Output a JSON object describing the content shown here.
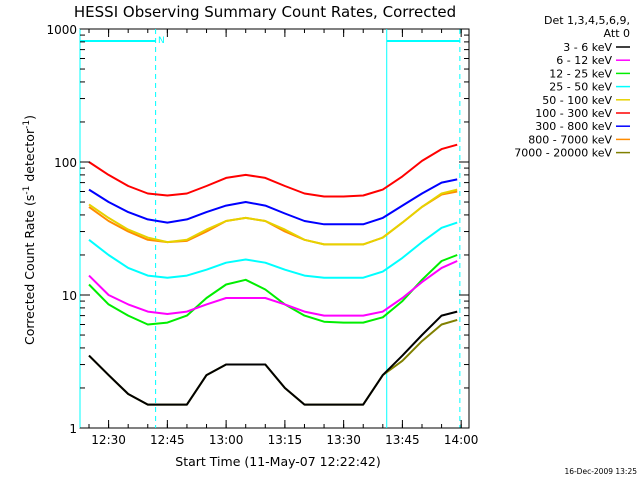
{
  "chart_data": {
    "type": "line",
    "title": "HESSI Observing Summary Count Rates, Corrected",
    "xlabel": "Start Time (11-May-07 12:22:42)",
    "ylabel_main": "Corrected Count Rate (s",
    "ylabel_sup1": "-1",
    "ylabel_mid": " detector",
    "ylabel_sup2": "-1",
    "ylabel_end": ")",
    "yscale": "log",
    "ylim": [
      1,
      1000
    ],
    "xlim": [
      "12:22:42",
      "14:02:00"
    ],
    "x_tick_labels": [
      "12:30",
      "12:45",
      "13:00",
      "13:15",
      "13:30",
      "13:45",
      "14:00"
    ],
    "y_tick_labels": [
      "1",
      "10",
      "100",
      "1000"
    ],
    "legend_header": [
      "Det 1,3,4,5,6,9,",
      "Att 0"
    ],
    "legend_position": "outside-right",
    "attenuator_bar_label": "N",
    "night_intervals": [
      [
        "12:22:42",
        "12:42:00"
      ],
      [
        "13:41:00",
        "13:59:40"
      ]
    ],
    "timestamp": "16-Dec-2009 13:25",
    "x": [
      "12:25",
      "12:30",
      "12:35",
      "12:40",
      "12:45",
      "12:50",
      "12:55",
      "13:00",
      "13:05",
      "13:10",
      "13:15",
      "13:20",
      "13:25",
      "13:30",
      "13:35",
      "13:40",
      "13:45",
      "13:50",
      "13:55",
      "13:59"
    ],
    "series": [
      {
        "name": "3 - 6 keV",
        "color": "#000000",
        "values": [
          3.5,
          2.5,
          1.8,
          1.5,
          1.5,
          1.5,
          2.5,
          3.0,
          3.0,
          3.0,
          2.0,
          1.5,
          1.5,
          1.5,
          1.5,
          2.5,
          3.5,
          5.0,
          7.0,
          7.5
        ]
      },
      {
        "name": "6 - 12 keV",
        "color": "#ff00ff",
        "values": [
          14,
          10,
          8.5,
          7.5,
          7.2,
          7.5,
          8.5,
          9.5,
          9.5,
          9.5,
          8.5,
          7.5,
          7.0,
          7.0,
          7.0,
          7.5,
          9.5,
          12.5,
          16,
          18
        ]
      },
      {
        "name": "12 - 25 keV",
        "color": "#00ee00",
        "values": [
          12,
          8.5,
          7.0,
          6.0,
          6.2,
          7.0,
          9.5,
          12,
          13,
          11,
          8.5,
          7.0,
          6.3,
          6.2,
          6.2,
          6.8,
          9.0,
          13,
          18,
          20
        ]
      },
      {
        "name": "25 - 50 keV",
        "color": "#00ffff",
        "values": [
          26,
          20,
          16,
          14,
          13.5,
          14,
          15.5,
          17.5,
          18.5,
          17.5,
          15.5,
          14,
          13.5,
          13.5,
          13.5,
          15,
          19,
          25,
          32,
          35
        ]
      },
      {
        "name": "50 - 100 keV",
        "color": "#e6d200",
        "values": [
          48,
          38,
          31,
          27,
          25,
          26,
          31,
          36,
          38,
          36,
          31,
          26,
          24,
          24,
          24,
          27,
          35,
          46,
          58,
          62
        ]
      },
      {
        "name": "100 - 300 keV",
        "color": "#ff0000",
        "values": [
          100,
          80,
          66,
          58,
          56,
          58,
          66,
          76,
          80,
          76,
          66,
          58,
          55,
          55,
          56,
          62,
          78,
          102,
          125,
          135
        ]
      },
      {
        "name": "300 - 800 keV",
        "color": "#0000ff",
        "values": [
          62,
          50,
          42,
          37,
          35,
          37,
          42,
          47,
          50,
          47,
          41,
          36,
          34,
          34,
          34,
          38,
          47,
          58,
          70,
          74
        ]
      },
      {
        "name": "800 - 7000 keV",
        "color": "#ff8c00",
        "values": [
          46,
          36,
          30,
          26,
          25,
          25.5,
          30,
          36,
          38,
          36,
          30,
          26,
          24,
          24,
          24,
          27,
          35,
          46,
          57,
          60
        ]
      },
      {
        "name": "7000 - 20000 keV",
        "color": "#808000",
        "values": [
          3.5,
          2.5,
          1.8,
          1.5,
          1.5,
          1.5,
          2.5,
          3.0,
          3.0,
          3.0,
          2.0,
          1.5,
          1.5,
          1.5,
          1.5,
          2.5,
          3.2,
          4.5,
          6.0,
          6.5
        ]
      }
    ]
  }
}
